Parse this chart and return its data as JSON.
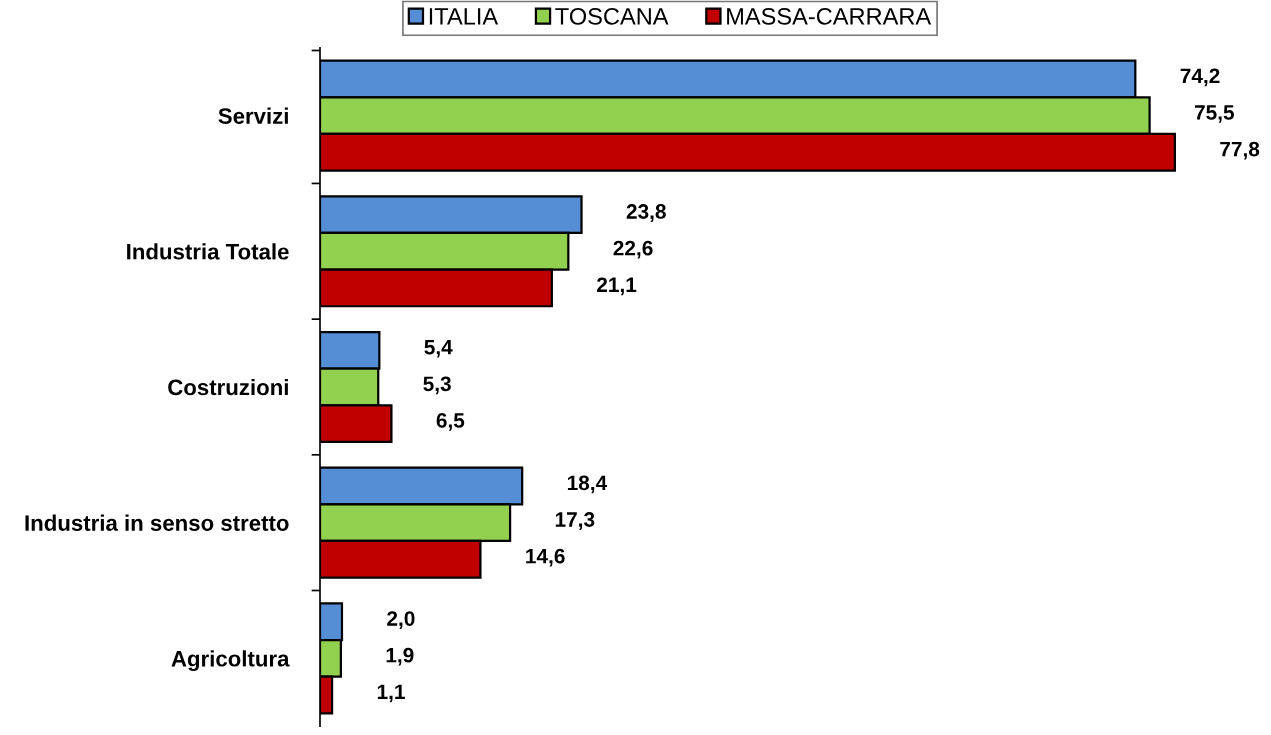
{
  "chart_data": {
    "type": "bar",
    "orientation": "horizontal",
    "categories": [
      "Servizi",
      "Industria Totale",
      "Costruzioni",
      "Industria in senso stretto",
      "Agricoltura"
    ],
    "series": [
      {
        "name": "ITALIA",
        "color": "#558ed5",
        "values": [
          74.2,
          23.8,
          5.4,
          18.4,
          2.0
        ],
        "value_labels": [
          "74,2",
          "23,8",
          "5,4",
          "18,4",
          "2,0"
        ]
      },
      {
        "name": "TOSCANA",
        "color": "#92d050",
        "values": [
          75.5,
          22.6,
          5.3,
          17.3,
          1.9
        ],
        "value_labels": [
          "75,5",
          "22,6",
          "5,3",
          "17,3",
          "1,9"
        ]
      },
      {
        "name": "MASSA-CARRARA",
        "color": "#c00000",
        "values": [
          77.8,
          21.1,
          6.5,
          14.6,
          1.1
        ],
        "value_labels": [
          "77,8",
          "21,1",
          "6,5",
          "14,6",
          "1,1"
        ]
      }
    ],
    "tick_labels": "y",
    "legend": "top"
  }
}
